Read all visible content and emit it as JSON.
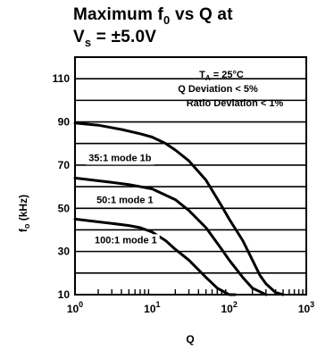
{
  "chart_data": {
    "type": "line",
    "title_line1_prefix": "Maximum f",
    "title_line1_sub": "0",
    "title_line1_suffix": " vs Q at",
    "title_line2_prefix": "V",
    "title_line2_sub": "s",
    "title_line2_suffix": " = ±5.0V",
    "xlabel": "Q",
    "ylabel": "f",
    "ylabel_sub": "o",
    "ylabel_unit": " (kHz)",
    "x_scale": "log",
    "xlim": [
      1,
      1000
    ],
    "ylim": [
      10,
      120
    ],
    "grid": true,
    "x_ticks": [
      {
        "base": "10",
        "exp": "0"
      },
      {
        "base": "10",
        "exp": "1"
      },
      {
        "base": "10",
        "exp": "2"
      },
      {
        "base": "10",
        "exp": "3"
      }
    ],
    "y_ticks": [
      "10",
      "30",
      "50",
      "70",
      "90",
      "110"
    ],
    "annotations": {
      "ta_prefix": "T",
      "ta_sub": "A",
      "ta_suffix": " = 25°C",
      "q_dev": "Q Deviation < 5%",
      "ratio_dev": "Ratio Deviation < 1%"
    },
    "series": [
      {
        "label": "35:1 mode 1b",
        "x": [
          1,
          2,
          4,
          7,
          10,
          15,
          20,
          30,
          50,
          80,
          100,
          150,
          200,
          250,
          300,
          400,
          500
        ],
        "y": [
          89.5,
          88.5,
          86.5,
          84.5,
          83,
          80,
          77,
          72,
          63,
          51,
          45,
          35,
          26,
          19,
          15,
          11,
          10
        ]
      },
      {
        "label": "50:1 mode 1",
        "x": [
          1,
          3,
          5,
          10,
          20,
          30,
          50,
          80,
          100,
          150,
          200,
          300
        ],
        "y": [
          64,
          62,
          61,
          59,
          54,
          49,
          41,
          31,
          26,
          18,
          13,
          10
        ]
      },
      {
        "label": "100:1 mode 1",
        "x": [
          1,
          3,
          5,
          7,
          10,
          15,
          20,
          30,
          50,
          70,
          100,
          120
        ],
        "y": [
          45,
          43,
          42,
          41,
          39,
          35,
          31,
          26,
          18,
          13,
          10,
          10
        ]
      }
    ]
  }
}
